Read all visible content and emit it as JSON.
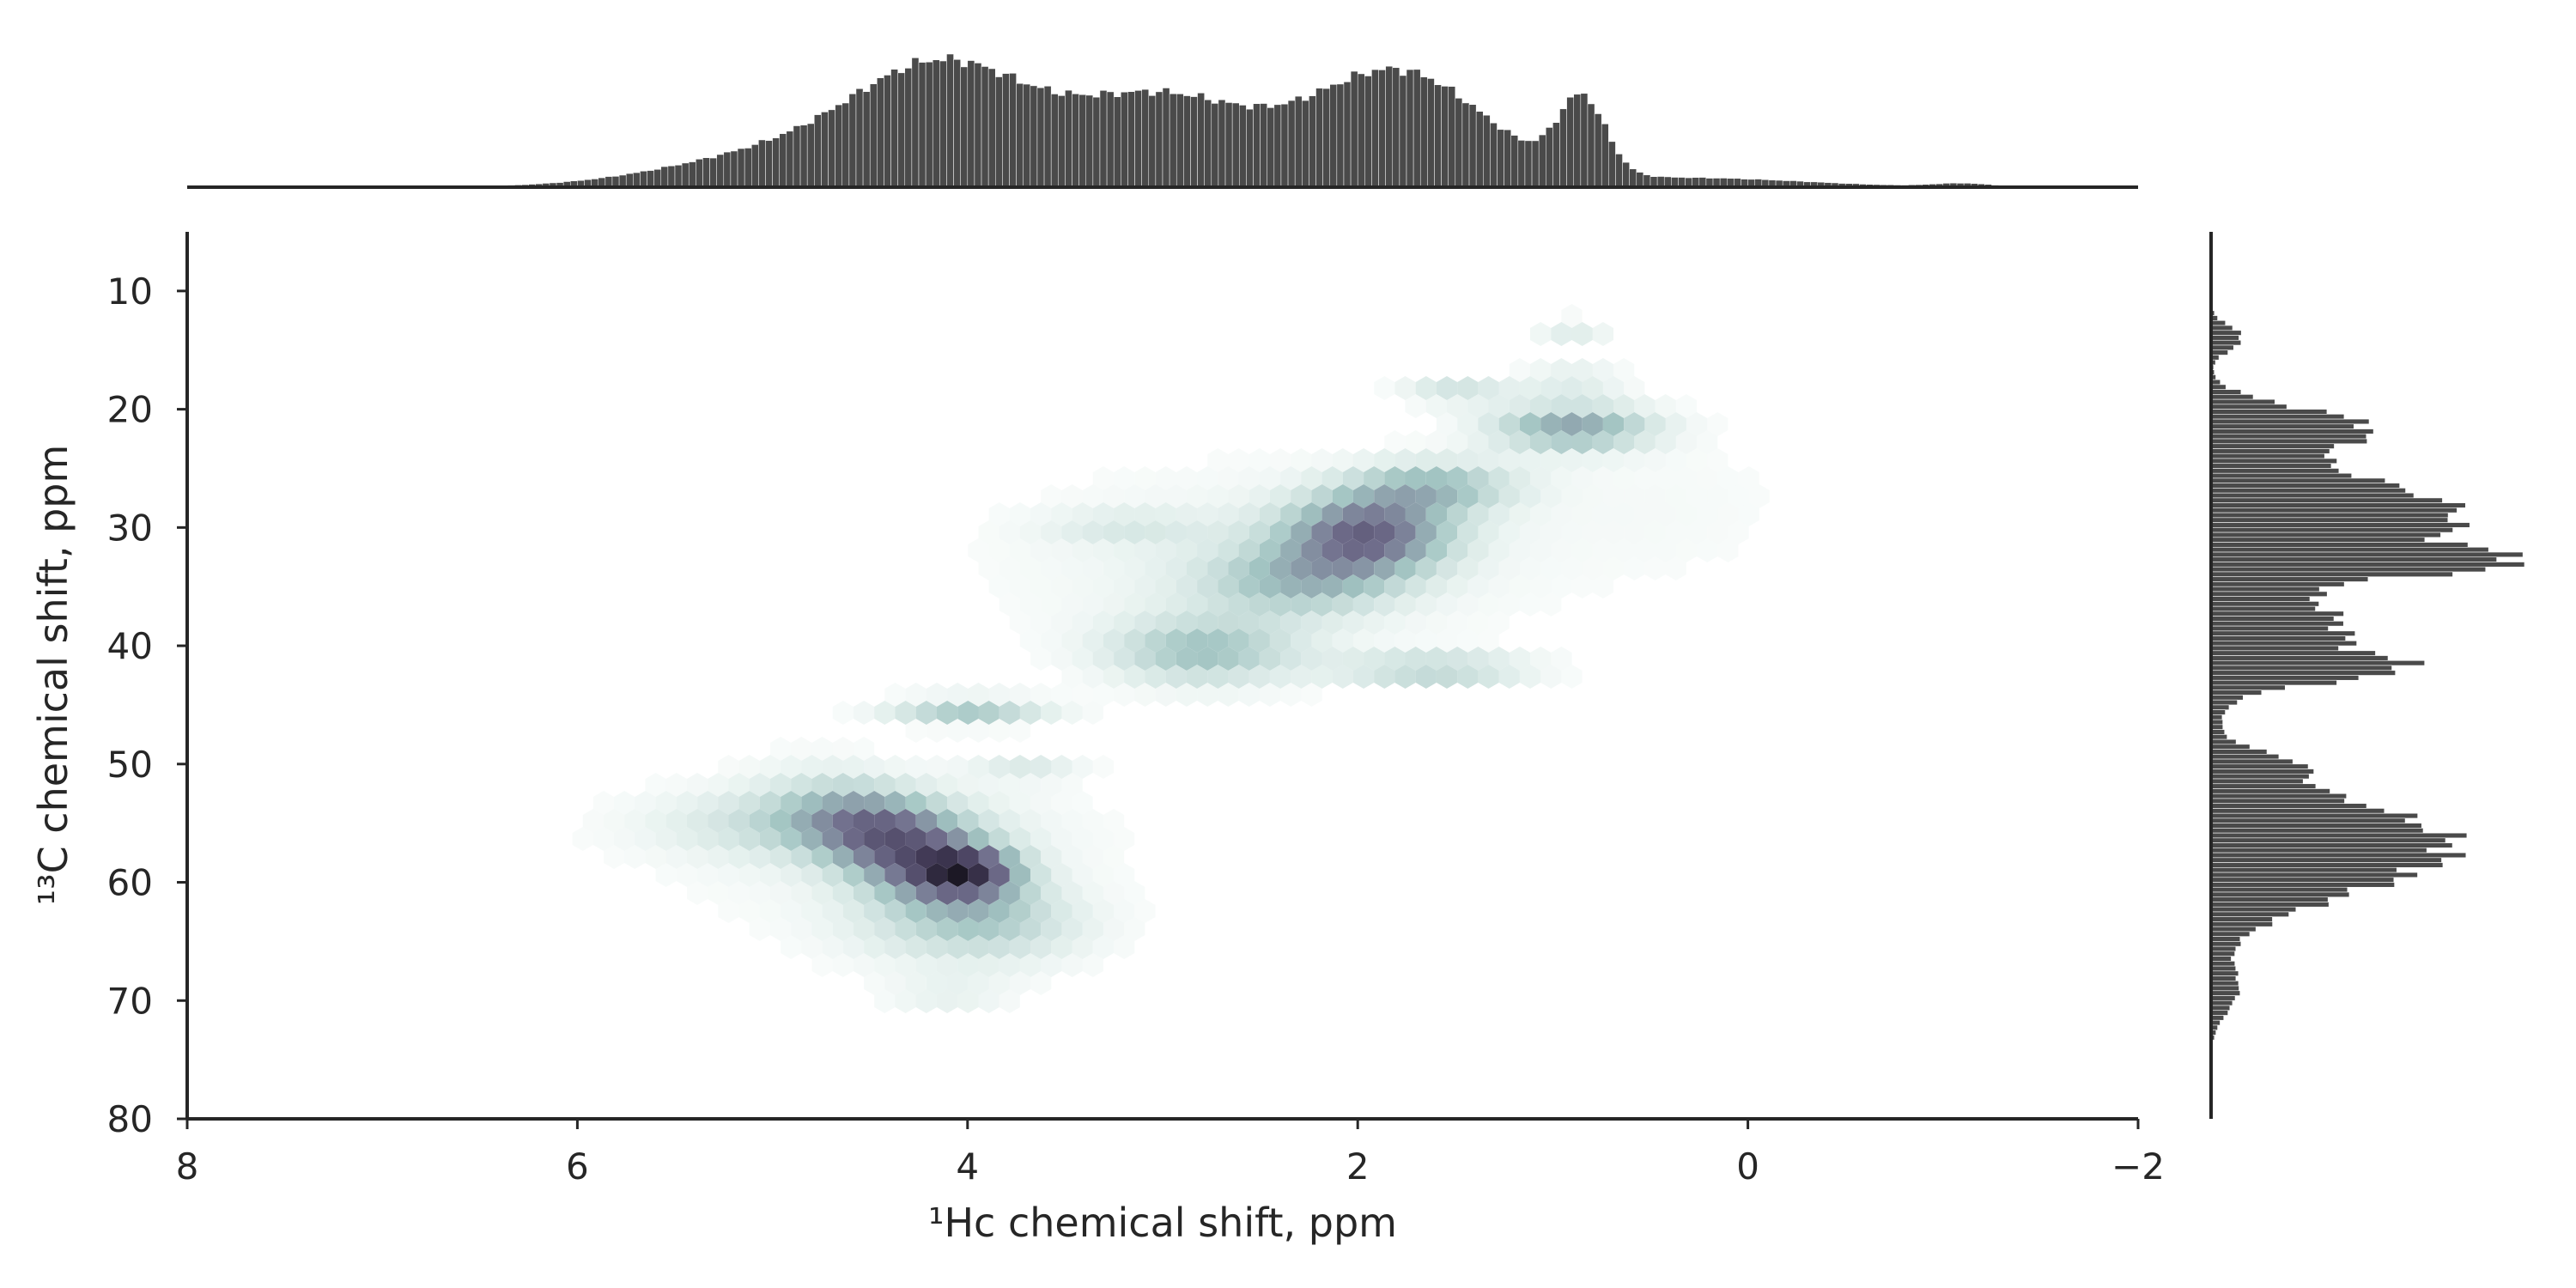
{
  "chart_data": {
    "type": "hexbin",
    "title": "",
    "xlabel": "¹Hc chemical shift, ppm",
    "ylabel": "¹³C chemical shift, ppm",
    "xlim": [
      8,
      -2
    ],
    "ylim": [
      80,
      5
    ],
    "x_inverted": true,
    "y_inverted": true,
    "xticks": [
      8,
      6,
      4,
      2,
      0,
      -2
    ],
    "xtick_labels": [
      "8",
      "6",
      "4",
      "2",
      "0",
      "−2"
    ],
    "yticks": [
      10,
      20,
      30,
      40,
      50,
      60,
      70,
      80
    ],
    "ytick_labels": [
      "10",
      "20",
      "30",
      "40",
      "50",
      "60",
      "70",
      "80"
    ],
    "grid": false,
    "colormap": "bone_r",
    "colors": {
      "marginal_bars": "#4a4a4a",
      "axes": "#262626",
      "hex_max": "#1c1825",
      "hex_low": "#cde3de"
    },
    "joint_density_clusters": [
      {
        "x": 4.3,
        "y": 57.5,
        "sx": 0.35,
        "sy": 3.5,
        "w": 1.0,
        "rho": -0.55
      },
      {
        "x": 4.0,
        "y": 59.0,
        "sx": 0.18,
        "sy": 1.3,
        "w": 0.85,
        "rho": 0.0
      },
      {
        "x": 4.8,
        "y": 55.0,
        "sx": 0.55,
        "sy": 2.0,
        "w": 0.35,
        "rho": 0.0
      },
      {
        "x": 4.0,
        "y": 64.0,
        "sx": 0.45,
        "sy": 2.5,
        "w": 0.35,
        "rho": 0.0
      },
      {
        "x": 4.0,
        "y": 45.5,
        "sx": 0.3,
        "sy": 0.8,
        "w": 0.55,
        "rho": 0.0
      },
      {
        "x": 3.7,
        "y": 50.5,
        "sx": 0.2,
        "sy": 0.7,
        "w": 0.25,
        "rho": 0.0
      },
      {
        "x": 4.1,
        "y": 69.5,
        "sx": 0.25,
        "sy": 0.9,
        "w": 0.2,
        "rho": 0.0
      },
      {
        "x": 2.8,
        "y": 40.5,
        "sx": 0.35,
        "sy": 2.0,
        "w": 0.55,
        "rho": 0.0
      },
      {
        "x": 3.2,
        "y": 30.0,
        "sx": 0.3,
        "sy": 1.0,
        "w": 0.2,
        "rho": 0.0
      },
      {
        "x": 1.95,
        "y": 30.5,
        "sx": 0.3,
        "sy": 2.3,
        "w": 1.0,
        "rho": 0.0
      },
      {
        "x": 2.3,
        "y": 34.5,
        "sx": 0.35,
        "sy": 2.0,
        "w": 0.5,
        "rho": 0.0
      },
      {
        "x": 1.6,
        "y": 42.0,
        "sx": 0.35,
        "sy": 0.9,
        "w": 0.5,
        "rho": 0.0
      },
      {
        "x": 1.6,
        "y": 26.5,
        "sx": 0.3,
        "sy": 1.5,
        "w": 0.55,
        "rho": 0.0
      },
      {
        "x": 1.5,
        "y": 18.5,
        "sx": 0.2,
        "sy": 0.8,
        "w": 0.35,
        "rho": 0.0
      },
      {
        "x": 0.9,
        "y": 21.5,
        "sx": 0.3,
        "sy": 1.4,
        "w": 0.75,
        "rho": 0.0
      },
      {
        "x": 0.9,
        "y": 17.5,
        "sx": 0.2,
        "sy": 0.8,
        "w": 0.3,
        "rho": 0.0
      },
      {
        "x": 0.9,
        "y": 13.5,
        "sx": 0.15,
        "sy": 0.9,
        "w": 0.25,
        "rho": 0.0
      },
      {
        "x": 2.5,
        "y": 33.0,
        "sx": 1.0,
        "sy": 6.0,
        "w": 0.18,
        "rho": 0.0
      },
      {
        "x": 4.4,
        "y": 57.0,
        "sx": 0.9,
        "sy": 5.0,
        "w": 0.15,
        "rho": 0.0
      },
      {
        "x": 0.4,
        "y": 28.0,
        "sx": 0.6,
        "sy": 5.0,
        "w": 0.08,
        "rho": 0.0
      }
    ],
    "marginal_x_peaks": [
      {
        "x": 4.1,
        "h": 0.95,
        "s": 0.45
      },
      {
        "x": 3.0,
        "h": 0.75,
        "s": 0.45
      },
      {
        "x": 1.8,
        "h": 1.0,
        "s": 0.45
      },
      {
        "x": 0.85,
        "h": 0.65,
        "s": 0.12
      },
      {
        "x": 4.9,
        "h": 0.3,
        "s": 0.6
      },
      {
        "x": 0.3,
        "h": 0.08,
        "s": 0.6
      },
      {
        "x": -1.1,
        "h": 0.03,
        "s": 0.15
      }
    ],
    "marginal_y_peaks": [
      {
        "y": 14.0,
        "h": 0.12,
        "s": 1.0
      },
      {
        "y": 21.5,
        "h": 0.55,
        "s": 1.6
      },
      {
        "y": 29.0,
        "h": 0.95,
        "s": 3.2
      },
      {
        "y": 33.0,
        "h": 0.7,
        "s": 1.0
      },
      {
        "y": 39.0,
        "h": 0.5,
        "s": 3.0
      },
      {
        "y": 42.0,
        "h": 0.45,
        "s": 1.0
      },
      {
        "y": 57.0,
        "h": 0.92,
        "s": 3.8
      },
      {
        "y": 50.0,
        "h": 0.18,
        "s": 1.0
      },
      {
        "y": 69.0,
        "h": 0.1,
        "s": 2.0
      }
    ]
  }
}
